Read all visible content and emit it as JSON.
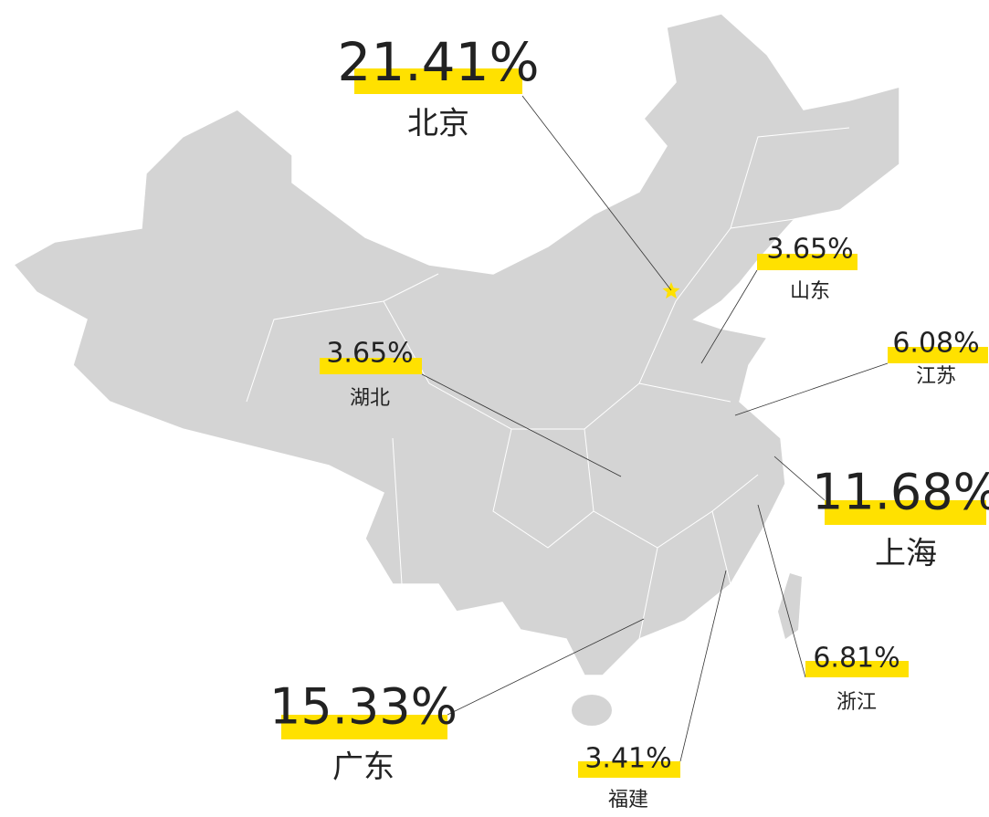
{
  "callouts": [
    {
      "value": "21.41%",
      "name": "北京"
    },
    {
      "value": "3.65%",
      "name": "山东"
    },
    {
      "value": "6.08%",
      "name": "江苏"
    },
    {
      "value": "3.65%",
      "name": "湖北"
    },
    {
      "value": "11.68%",
      "name": "上海"
    },
    {
      "value": "6.81%",
      "name": "浙江"
    },
    {
      "value": "15.33%",
      "name": "广东"
    },
    {
      "value": "3.41%",
      "name": "福建"
    }
  ]
}
